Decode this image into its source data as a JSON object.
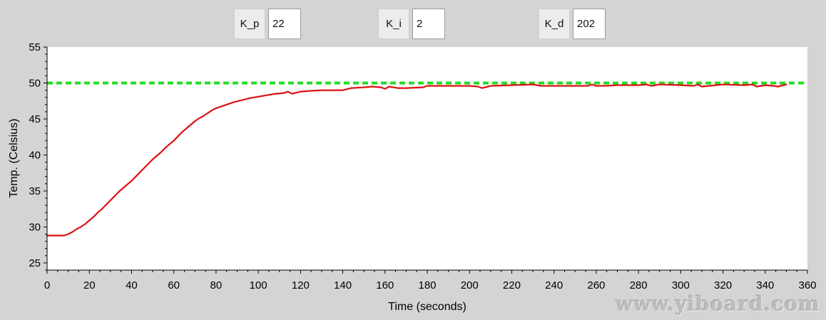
{
  "params": {
    "kp": {
      "label": "K_p",
      "value": "22"
    },
    "ki": {
      "label": "K_i",
      "value": "2"
    },
    "kd": {
      "label": "K_d",
      "value": "202"
    }
  },
  "watermark": "www.yiboard.com",
  "colors": {
    "temperature": "#dd1111",
    "setpoint": "#22dd22",
    "plot_background": "#ffffff",
    "window_background": "#d4d4d4"
  },
  "chart_data": {
    "type": "line",
    "xlabel": "Time (seconds)",
    "ylabel": "Temp. (Celsius)",
    "xlim": [
      0,
      360
    ],
    "ylim": [
      24,
      55
    ],
    "xticks": [
      0,
      20,
      40,
      60,
      80,
      100,
      120,
      140,
      160,
      180,
      200,
      220,
      240,
      260,
      280,
      300,
      320,
      340,
      360
    ],
    "yticks": [
      25,
      30,
      35,
      40,
      45,
      50,
      55
    ],
    "grid": false,
    "series": [
      {
        "style": "solid",
        "color": "#dd1111",
        "x": [
          0,
          4,
          8,
          10,
          12,
          14,
          16,
          18,
          20,
          22,
          24,
          26,
          28,
          30,
          32,
          34,
          36,
          38,
          40,
          42,
          44,
          46,
          48,
          50,
          52,
          54,
          56,
          58,
          60,
          62,
          64,
          66,
          68,
          70,
          72,
          74,
          76,
          78,
          80,
          84,
          88,
          92,
          96,
          100,
          104,
          108,
          112,
          114,
          116,
          120,
          124,
          130,
          140,
          144,
          150,
          154,
          158,
          160,
          162,
          166,
          170,
          178,
          180,
          190,
          200,
          204,
          206,
          210,
          220,
          230,
          234,
          240,
          250,
          256,
          258,
          260,
          264,
          270,
          280,
          284,
          286,
          290,
          300,
          306,
          308,
          310,
          320,
          330,
          334,
          336,
          340,
          344,
          346,
          350
        ],
        "values": [
          28.8,
          28.8,
          28.8,
          29.0,
          29.3,
          29.7,
          30.0,
          30.4,
          30.9,
          31.4,
          32.0,
          32.5,
          33.1,
          33.7,
          34.3,
          34.9,
          35.4,
          35.9,
          36.4,
          37.0,
          37.6,
          38.2,
          38.8,
          39.4,
          39.9,
          40.4,
          41.0,
          41.5,
          42.0,
          42.6,
          43.2,
          43.7,
          44.2,
          44.7,
          45.1,
          45.4,
          45.8,
          46.2,
          46.5,
          46.9,
          47.3,
          47.6,
          47.9,
          48.1,
          48.3,
          48.5,
          48.6,
          48.8,
          48.5,
          48.8,
          48.9,
          49.0,
          49.0,
          49.3,
          49.4,
          49.5,
          49.4,
          49.2,
          49.5,
          49.3,
          49.3,
          49.4,
          49.6,
          49.6,
          49.6,
          49.5,
          49.3,
          49.6,
          49.7,
          49.8,
          49.6,
          49.6,
          49.6,
          49.6,
          49.8,
          49.6,
          49.6,
          49.7,
          49.7,
          49.8,
          49.6,
          49.8,
          49.7,
          49.6,
          49.8,
          49.5,
          49.8,
          49.7,
          49.8,
          49.5,
          49.7,
          49.6,
          49.5,
          49.8
        ]
      },
      {
        "style": "dashed",
        "color": "#22dd22",
        "x": [
          0,
          360
        ],
        "values": [
          50,
          50
        ]
      }
    ]
  }
}
